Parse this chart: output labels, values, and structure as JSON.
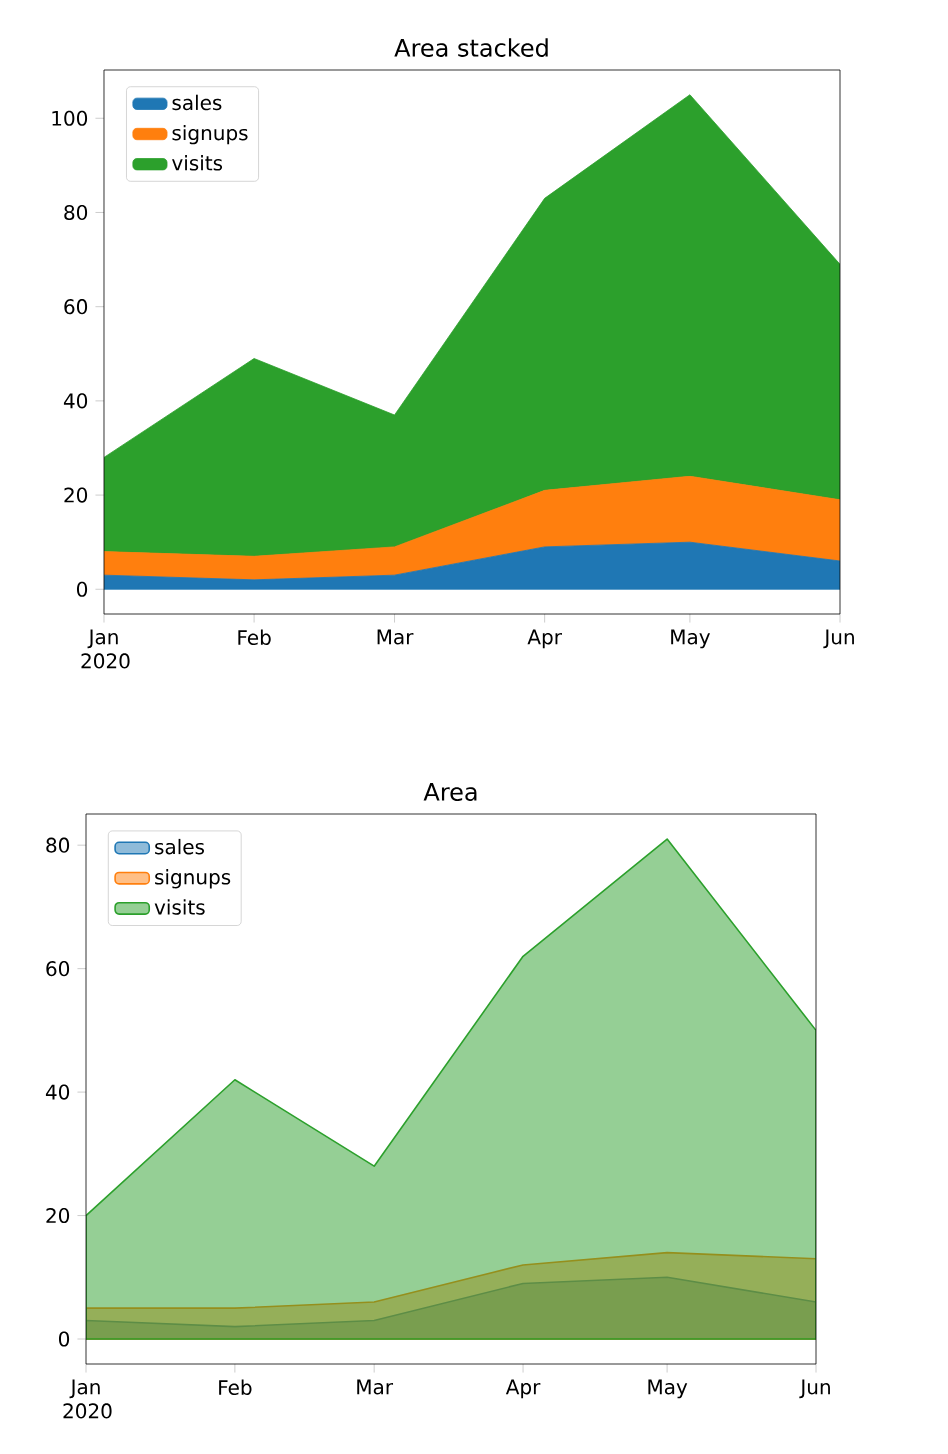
{
  "chart_data": [
    {
      "type": "area",
      "title": "Area stacked",
      "stacked": true,
      "legend": "top left",
      "x": [
        "2020-01",
        "2020-02",
        "2020-03",
        "2020-04",
        "2020-05",
        "2020-06"
      ],
      "series": [
        {
          "name": "sales",
          "color": "#1f77b4",
          "values": [
            3,
            2,
            3,
            9,
            10,
            6
          ]
        },
        {
          "name": "signups",
          "color": "#ff7f0e",
          "values": [
            5,
            5,
            6,
            12,
            14,
            13
          ]
        },
        {
          "name": "visits",
          "color": "#2ca02c",
          "values": [
            20,
            42,
            28,
            62,
            81,
            50
          ]
        }
      ],
      "xlim": [
        "2020-01",
        "2020-06"
      ],
      "xticks": [
        {
          "value": "2020-01",
          "label": "Jan 2020"
        },
        {
          "value": "2020-02",
          "label": "Feb"
        },
        {
          "value": "2020-03",
          "label": "Mar"
        },
        {
          "value": "2020-04",
          "label": "Apr"
        },
        {
          "value": "2020-05",
          "label": "May"
        },
        {
          "value": "2020-06",
          "label": "Jun"
        }
      ],
      "ylim": [
        -5.25,
        110.25
      ],
      "yticks": [
        0,
        20,
        40,
        60,
        80,
        100
      ]
    },
    {
      "type": "area",
      "title": "Area",
      "legend": "top left",
      "x": [
        "2020-01",
        "2020-02",
        "2020-03",
        "2020-04",
        "2020-05",
        "2020-06"
      ],
      "series": [
        {
          "name": "sales",
          "color": "#1f77b4",
          "values": [
            3,
            2,
            3,
            9,
            10,
            6
          ]
        },
        {
          "name": "signups",
          "color": "#ff7f0e",
          "values": [
            5,
            5,
            6,
            12,
            14,
            13
          ]
        },
        {
          "name": "visits",
          "color": "#2ca02c",
          "values": [
            20,
            42,
            28,
            62,
            81,
            50
          ]
        }
      ],
      "xlim": [
        "2020-01",
        "2020-06"
      ],
      "xticks": [
        {
          "value": "2020-01",
          "label": "Jan 2020"
        },
        {
          "value": "2020-02",
          "label": "Feb"
        },
        {
          "value": "2020-03",
          "label": "Mar"
        },
        {
          "value": "2020-04",
          "label": "Apr"
        },
        {
          "value": "2020-05",
          "label": "May"
        },
        {
          "value": "2020-06",
          "label": "Jun"
        }
      ],
      "ylim": [
        -4.05,
        85.05
      ],
      "yticks": [
        0,
        20,
        40,
        60,
        80
      ]
    }
  ]
}
